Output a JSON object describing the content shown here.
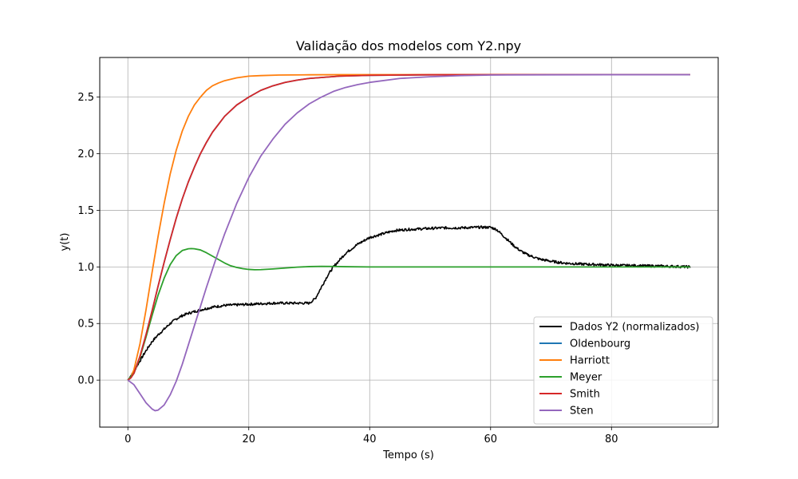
{
  "chart_data": {
    "type": "line",
    "title": "Validação dos modelos com Y2.npy",
    "xlabel": "Tempo (s)",
    "ylabel": "y(t)",
    "xlim": [
      -4.65,
      97.65
    ],
    "ylim": [
      -0.415,
      2.85
    ],
    "xticks": [
      0,
      20,
      40,
      60,
      80
    ],
    "xtick_labels": [
      "0",
      "20",
      "40",
      "60",
      "80"
    ],
    "yticks": [
      0.0,
      0.5,
      1.0,
      1.5,
      2.0,
      2.5
    ],
    "ytick_labels": [
      "0.0",
      "0.5",
      "1.0",
      "1.5",
      "2.0",
      "2.5"
    ],
    "grid": true,
    "legend_position": "lower-right",
    "series": [
      {
        "name": "Dados Y2 (normalizados)",
        "color": "#000000",
        "noisy": true,
        "x": [
          0,
          0.5,
          1,
          2,
          3,
          4,
          5,
          6,
          7,
          8,
          9,
          10,
          12,
          14,
          16,
          18,
          20,
          22,
          24,
          26,
          28,
          30,
          31,
          32,
          33,
          34,
          35,
          36,
          38,
          40,
          42,
          44,
          46,
          48,
          50,
          52,
          55,
          58,
          60,
          61,
          62,
          63,
          64,
          65,
          66,
          68,
          70,
          72,
          75,
          78,
          80,
          85,
          90,
          93
        ],
        "y": [
          0.0,
          0.04,
          0.08,
          0.17,
          0.26,
          0.34,
          0.4,
          0.45,
          0.5,
          0.54,
          0.57,
          0.59,
          0.62,
          0.645,
          0.66,
          0.665,
          0.67,
          0.675,
          0.68,
          0.68,
          0.68,
          0.68,
          0.72,
          0.82,
          0.92,
          1.0,
          1.06,
          1.12,
          1.2,
          1.26,
          1.29,
          1.32,
          1.33,
          1.335,
          1.34,
          1.345,
          1.345,
          1.35,
          1.35,
          1.33,
          1.28,
          1.23,
          1.18,
          1.14,
          1.11,
          1.07,
          1.05,
          1.035,
          1.025,
          1.02,
          1.015,
          1.01,
          1.005,
          1.0
        ]
      },
      {
        "name": "Oldenbourg",
        "color": "#1f77b4",
        "x": [
          0,
          0.5,
          1,
          2,
          3,
          4,
          5,
          6,
          7,
          8,
          9,
          10,
          11,
          12,
          13,
          14,
          15,
          16,
          17,
          18,
          20,
          22,
          24,
          26,
          28,
          30,
          35,
          40,
          45,
          50,
          60,
          70,
          80,
          93
        ],
        "y": [
          0.0,
          0.02,
          0.06,
          0.21,
          0.4,
          0.61,
          0.83,
          1.04,
          1.24,
          1.43,
          1.6,
          1.75,
          1.88,
          2.0,
          2.1,
          2.19,
          2.26,
          2.33,
          2.38,
          2.43,
          2.5,
          2.56,
          2.6,
          2.63,
          2.65,
          2.665,
          2.685,
          2.692,
          2.695,
          2.697,
          2.698,
          2.698,
          2.698,
          2.698
        ]
      },
      {
        "name": "Harriott",
        "color": "#ff7f0e",
        "x": [
          0,
          0.5,
          1,
          2,
          3,
          4,
          5,
          6,
          7,
          8,
          9,
          10,
          11,
          12,
          13,
          14,
          15,
          16,
          18,
          20,
          22,
          25,
          30,
          35,
          40,
          50,
          60,
          70,
          80,
          93
        ],
        "y": [
          0.0,
          0.03,
          0.09,
          0.32,
          0.62,
          0.95,
          1.27,
          1.56,
          1.82,
          2.03,
          2.2,
          2.33,
          2.43,
          2.5,
          2.56,
          2.6,
          2.625,
          2.645,
          2.67,
          2.685,
          2.69,
          2.695,
          2.697,
          2.698,
          2.698,
          2.698,
          2.698,
          2.698,
          2.698,
          2.698
        ]
      },
      {
        "name": "Meyer",
        "color": "#2ca02c",
        "x": [
          0,
          1,
          2,
          3,
          4,
          5,
          6,
          7,
          8,
          9,
          10,
          10.5,
          11,
          12,
          13,
          14,
          15,
          16,
          17,
          18,
          19,
          20,
          21,
          22,
          24,
          26,
          28,
          30,
          32,
          34,
          36,
          40,
          50,
          60,
          70,
          80,
          93
        ],
        "y": [
          0.0,
          0.06,
          0.2,
          0.38,
          0.57,
          0.75,
          0.9,
          1.02,
          1.1,
          1.145,
          1.16,
          1.162,
          1.16,
          1.15,
          1.125,
          1.095,
          1.065,
          1.035,
          1.01,
          0.995,
          0.985,
          0.978,
          0.975,
          0.976,
          0.982,
          0.99,
          0.998,
          1.003,
          1.005,
          1.004,
          1.002,
          1.0,
          1.0,
          1.0,
          1.0,
          1.0,
          1.0
        ]
      },
      {
        "name": "Smith",
        "color": "#d62728",
        "x": [
          0,
          0.5,
          1,
          2,
          3,
          4,
          5,
          6,
          7,
          8,
          9,
          10,
          11,
          12,
          13,
          14,
          15,
          16,
          17,
          18,
          20,
          22,
          24,
          26,
          28,
          30,
          35,
          40,
          45,
          50,
          60,
          70,
          80,
          93
        ],
        "y": [
          0.0,
          0.02,
          0.06,
          0.21,
          0.4,
          0.61,
          0.83,
          1.04,
          1.24,
          1.43,
          1.6,
          1.75,
          1.88,
          2.0,
          2.1,
          2.19,
          2.26,
          2.33,
          2.38,
          2.43,
          2.5,
          2.56,
          2.6,
          2.63,
          2.65,
          2.665,
          2.685,
          2.692,
          2.695,
          2.697,
          2.698,
          2.698,
          2.698,
          2.698
        ]
      },
      {
        "name": "Sten",
        "color": "#9467bd",
        "x": [
          0,
          1,
          2,
          3,
          4,
          4.5,
          5,
          6,
          7,
          8,
          9,
          10,
          11,
          12,
          13,
          14,
          15,
          16,
          18,
          20,
          22,
          24,
          26,
          28,
          30,
          32,
          34,
          36,
          38,
          40,
          45,
          50,
          55,
          60,
          70,
          80,
          93
        ],
        "y": [
          0.0,
          -0.04,
          -0.12,
          -0.2,
          -0.255,
          -0.27,
          -0.265,
          -0.22,
          -0.13,
          -0.01,
          0.14,
          0.31,
          0.48,
          0.65,
          0.82,
          0.98,
          1.14,
          1.29,
          1.56,
          1.79,
          1.98,
          2.13,
          2.26,
          2.36,
          2.44,
          2.5,
          2.55,
          2.585,
          2.61,
          2.63,
          2.665,
          2.68,
          2.69,
          2.695,
          2.697,
          2.698,
          2.698
        ]
      }
    ]
  }
}
